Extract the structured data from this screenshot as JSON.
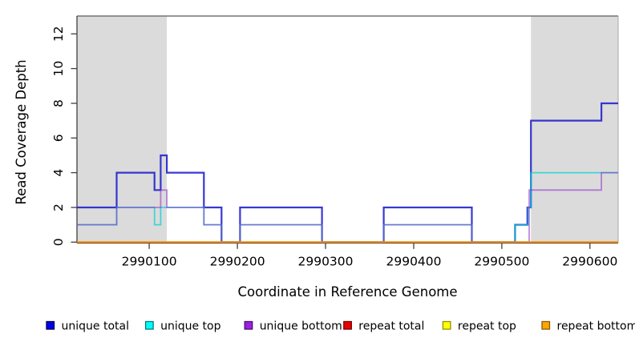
{
  "chart_data": {
    "type": "line",
    "subtype": "step-coverage",
    "title": "",
    "xlabel": "Coordinate in Reference Genome",
    "ylabel": "Read Coverage Depth",
    "xlim": [
      2990018,
      2990632
    ],
    "ylim": [
      0,
      13
    ],
    "x_ticks": [
      "2990100",
      "2990200",
      "2990300",
      "2990400",
      "2990500",
      "2990600"
    ],
    "x_tick_values": [
      2990100,
      2990200,
      2990300,
      2990400,
      2990500,
      2990600
    ],
    "y_ticks": [
      "0",
      "2",
      "4",
      "6",
      "8",
      "10",
      "12"
    ],
    "y_tick_values": [
      0,
      2,
      4,
      6,
      8,
      10,
      12
    ],
    "grid": false,
    "legend_position": "bottom",
    "plot_bg": "#ffffff",
    "region_fill": "#dbdbdb",
    "top_border_color": "#737373",
    "axis_color": "#404040",
    "right_border_color": "#aaaaaa",
    "shaded_regions": [
      {
        "name": "left-masked-region",
        "from": 2990018,
        "to": 2990120
      },
      {
        "name": "right-masked-region",
        "from": 2990533,
        "to": 2990632
      }
    ],
    "series": [
      {
        "name": "unique total",
        "color": "#2222cd",
        "opacity": 0.9,
        "width": 2.2,
        "points": [
          [
            2990018,
            2
          ],
          [
            2990063,
            4
          ],
          [
            2990106,
            3
          ],
          [
            2990113,
            5
          ],
          [
            2990120,
            4
          ],
          [
            2990162,
            2
          ],
          [
            2990182,
            0
          ],
          [
            2990203,
            2
          ],
          [
            2990296,
            0
          ],
          [
            2990366,
            2
          ],
          [
            2990466,
            0
          ],
          [
            2990515,
            1
          ],
          [
            2990529,
            2
          ],
          [
            2990533,
            7
          ],
          [
            2990613,
            8
          ]
        ]
      },
      {
        "name": "unique top",
        "color": "#00d2d2",
        "opacity": 0.7,
        "width": 1.8,
        "points": [
          [
            2990018,
            1
          ],
          [
            2990063,
            2
          ],
          [
            2990106,
            1
          ],
          [
            2990113,
            2
          ],
          [
            2990162,
            1
          ],
          [
            2990182,
            0
          ],
          [
            2990203,
            1
          ],
          [
            2990296,
            0
          ],
          [
            2990366,
            1
          ],
          [
            2990466,
            0
          ],
          [
            2990515,
            1
          ],
          [
            2990530,
            2
          ],
          [
            2990533,
            4
          ]
        ]
      },
      {
        "name": "unique bottom",
        "color": "#8c28c8",
        "opacity": 0.55,
        "width": 1.8,
        "points": [
          [
            2990018,
            1
          ],
          [
            2990063,
            2
          ],
          [
            2990113,
            3
          ],
          [
            2990120,
            2
          ],
          [
            2990162,
            1
          ],
          [
            2990182,
            0
          ],
          [
            2990203,
            1
          ],
          [
            2990296,
            0
          ],
          [
            2990366,
            1
          ],
          [
            2990466,
            0
          ],
          [
            2990531,
            3
          ],
          [
            2990613,
            4
          ]
        ]
      },
      {
        "name": "repeat total",
        "color": "#dd0000",
        "opacity": 0.9,
        "width": 1.5,
        "points": [
          [
            2990018,
            0
          ]
        ]
      },
      {
        "name": "repeat top",
        "color": "#eeee00",
        "opacity": 0.9,
        "width": 1.5,
        "points": [
          [
            2990018,
            0
          ]
        ]
      },
      {
        "name": "repeat bottom",
        "color": "#ff8c00",
        "opacity": 1,
        "width": 2,
        "points": [
          [
            2990018,
            0
          ]
        ]
      }
    ]
  },
  "legend": {
    "items": [
      {
        "label": "unique total",
        "fill": "#0000ee",
        "border": "#00004d"
      },
      {
        "label": "unique top",
        "fill": "#00ffff",
        "border": "#007a7a"
      },
      {
        "label": "unique bottom",
        "fill": "#9d1fe0",
        "border": "#4b0e70"
      },
      {
        "label": "repeat total",
        "fill": "#ee0000",
        "border": "#6e0000"
      },
      {
        "label": "repeat top",
        "fill": "#ffff00",
        "border": "#8f8f00"
      },
      {
        "label": "repeat bottom",
        "fill": "#ffa500",
        "border": "#8a5a00"
      }
    ]
  }
}
